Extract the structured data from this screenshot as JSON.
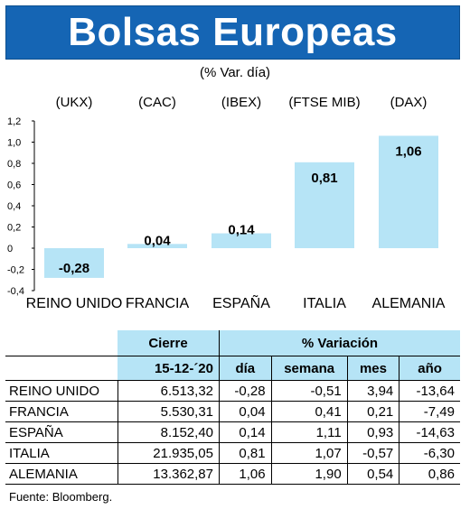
{
  "title": "Bolsas Europeas",
  "subtitle": "(% Var. día)",
  "chart_data": {
    "type": "bar",
    "categories": [
      "REINO UNIDO",
      "FRANCIA",
      "ESPAÑA",
      "ITALIA",
      "ALEMANIA"
    ],
    "tickers": [
      "(UKX)",
      "(CAC)",
      "(IBEX)",
      "(FTSE MIB)",
      "(DAX)"
    ],
    "values": [
      -0.28,
      0.04,
      0.14,
      0.81,
      1.06
    ],
    "value_labels": [
      "-0,28",
      "0,04",
      "0,14",
      "0,81",
      "1,06"
    ],
    "ylim": [
      -0.4,
      1.2
    ],
    "yticks": [
      -0.4,
      -0.2,
      0,
      0.2,
      0.4,
      0.6,
      0.8,
      1.0,
      1.2
    ],
    "ytick_labels": [
      "-0,4",
      "-0,2",
      "0",
      "0,2",
      "0,4",
      "0,6",
      "0,8",
      "1,0",
      "1,2"
    ],
    "bar_color": "#b6e4f6",
    "grid": false
  },
  "table": {
    "header_cierre": "Cierre",
    "header_variacion": "% Variación",
    "sub_date": "15-12-´20",
    "sub_cols": [
      "día",
      "semana",
      "mes",
      "año"
    ],
    "rows": [
      [
        "REINO UNIDO",
        "6.513,32",
        "-0,28",
        "-0,51",
        "3,94",
        "-13,64"
      ],
      [
        "FRANCIA",
        "5.530,31",
        "0,04",
        "0,41",
        "0,21",
        "-7,49"
      ],
      [
        "ESPAÑA",
        "8.152,40",
        "0,14",
        "1,11",
        "0,93",
        "-14,63"
      ],
      [
        "ITALIA",
        "21.935,05",
        "0,81",
        "1,07",
        "-0,57",
        "-6,30"
      ],
      [
        "ALEMANIA",
        "13.362,87",
        "1,06",
        "1,90",
        "0,54",
        "0,86"
      ]
    ]
  },
  "footer": "Fuente: Bloomberg.",
  "colors": {
    "header_bg": "#1565b4",
    "header_text": "#ffffff",
    "light_blue": "#b6e4f6"
  }
}
